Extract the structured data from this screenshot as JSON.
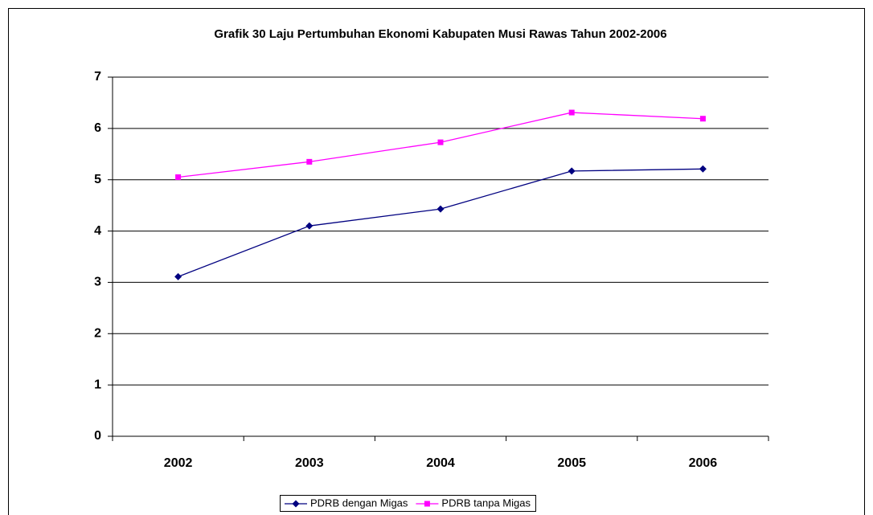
{
  "chart_data": {
    "type": "line",
    "title": "Grafik 30 Laju Pertumbuhan Ekonomi Kabupaten Musi Rawas Tahun 2002-2006",
    "categories": [
      "2002",
      "2003",
      "2004",
      "2005",
      "2006"
    ],
    "series": [
      {
        "name": "PDRB dengan Migas",
        "color": "#000080",
        "marker": "diamond",
        "values": [
          3.11,
          4.1,
          4.43,
          5.17,
          5.21
        ]
      },
      {
        "name": "PDRB tanpa Migas",
        "color": "#ff00ff",
        "marker": "square",
        "values": [
          5.05,
          5.35,
          5.73,
          6.31,
          6.19
        ]
      }
    ],
    "ylim": [
      0,
      7
    ],
    "yticks": [
      0,
      1,
      2,
      3,
      4,
      5,
      6,
      7
    ],
    "grid": true,
    "legend": "bottom"
  }
}
